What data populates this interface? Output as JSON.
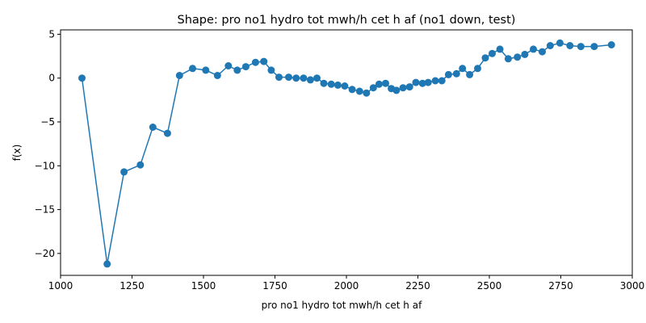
{
  "chart_data": {
    "type": "line",
    "title": "Shape: pro no1 hydro tot mwh/h cet h af (no1 down, test)",
    "xlabel": "pro no1 hydro tot mwh/h cet h af",
    "ylabel": "f(x)",
    "xlim": [
      1000,
      3000
    ],
    "ylim": [
      -22.5,
      5.5
    ],
    "xticks": [
      1000,
      1250,
      1500,
      1750,
      2000,
      2250,
      2500,
      2750,
      3000
    ],
    "yticks": [
      5,
      0,
      -5,
      -10,
      -15,
      -20
    ],
    "xtick_labels": [
      "1000",
      "1250",
      "1500",
      "1750",
      "2000",
      "2250",
      "2500",
      "2750",
      "3000"
    ],
    "ytick_labels": [
      "5",
      "0",
      "−5",
      "−10",
      "−15",
      "−20"
    ],
    "grid": false,
    "series": [
      {
        "name": "shape",
        "color": "#1f77b4",
        "marker": "circle",
        "x": [
          1075,
          1163,
          1222,
          1279,
          1323,
          1374,
          1416,
          1462,
          1508,
          1549,
          1587,
          1618,
          1648,
          1682,
          1711,
          1737,
          1764,
          1798,
          1824,
          1850,
          1874,
          1897,
          1921,
          1947,
          1970,
          1994,
          2020,
          2046,
          2070,
          2094,
          2114,
          2137,
          2157,
          2175,
          2198,
          2221,
          2243,
          2266,
          2286,
          2311,
          2334,
          2357,
          2385,
          2406,
          2431,
          2459,
          2486,
          2510,
          2537,
          2566,
          2598,
          2624,
          2654,
          2685,
          2713,
          2747,
          2782,
          2820,
          2867,
          2927
        ],
        "y": [
          0.0,
          -21.2,
          -10.7,
          -9.9,
          -5.6,
          -6.3,
          0.3,
          1.1,
          0.9,
          0.3,
          1.4,
          0.9,
          1.3,
          1.8,
          1.9,
          0.9,
          0.1,
          0.1,
          0.0,
          0.0,
          -0.2,
          0.0,
          -0.6,
          -0.7,
          -0.8,
          -0.9,
          -1.3,
          -1.5,
          -1.7,
          -1.1,
          -0.7,
          -0.6,
          -1.2,
          -1.4,
          -1.1,
          -1.0,
          -0.5,
          -0.6,
          -0.5,
          -0.3,
          -0.3,
          0.4,
          0.5,
          1.1,
          0.4,
          1.1,
          2.3,
          2.8,
          3.3,
          2.2,
          2.4,
          2.7,
          3.3,
          3.0,
          3.7,
          4.0,
          3.7,
          3.6,
          3.6,
          3.8
        ]
      }
    ]
  }
}
